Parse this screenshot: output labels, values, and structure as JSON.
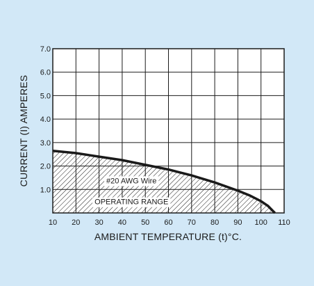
{
  "chart_data": {
    "type": "area",
    "xlabel": "AMBIENT TEMPERATURE (t)°C.",
    "ylabel": "CURRENT (I) AMPERES",
    "xlim": [
      10,
      110
    ],
    "ylim": [
      0,
      7
    ],
    "x_ticks": [
      10,
      20,
      30,
      40,
      50,
      60,
      70,
      80,
      90,
      100,
      110
    ],
    "y_ticks": [
      "1.0",
      "2.0",
      "3.0",
      "4.0",
      "5.0",
      "6.0",
      "7.0"
    ],
    "grid": true,
    "series": [
      {
        "x": [
          10,
          20,
          30,
          40,
          50,
          60,
          70,
          80,
          90,
          95,
          100,
          103,
          105,
          106
        ],
        "y": [
          2.65,
          2.55,
          2.4,
          2.25,
          2.05,
          1.85,
          1.6,
          1.3,
          0.95,
          0.75,
          0.5,
          0.3,
          0.1,
          0.0
        ]
      }
    ],
    "annotations": [
      {
        "text": "#20 AWG Wire",
        "x": 44,
        "y": 1.35
      },
      {
        "text": "OPERATING RANGE",
        "x": 44,
        "y": 0.45
      }
    ],
    "colors": {
      "background": "#d2e8f7",
      "plot": "#ffffff",
      "ink": "#1a1a1a"
    }
  }
}
